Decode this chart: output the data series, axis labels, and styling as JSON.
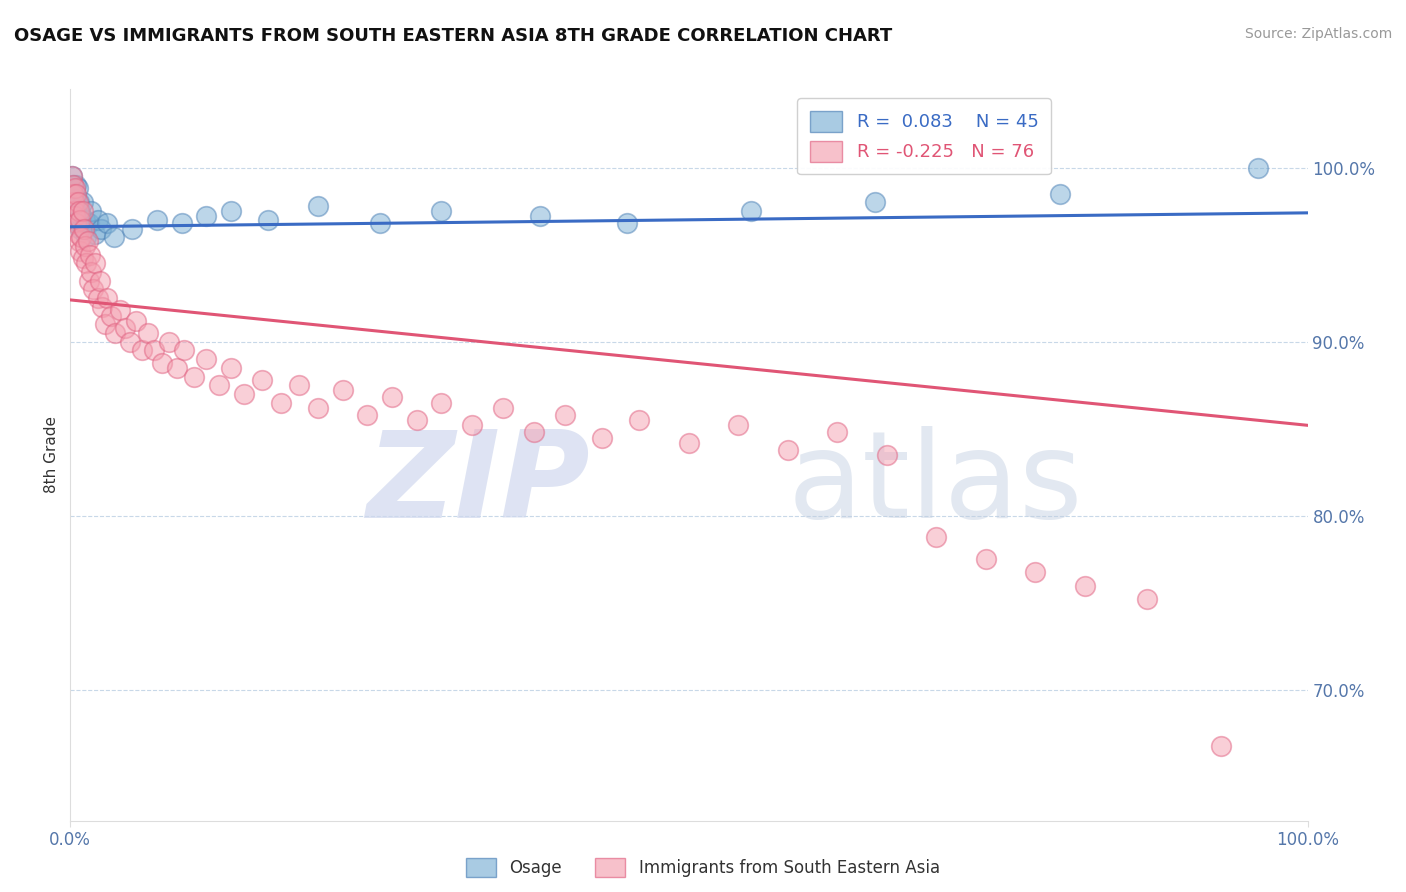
{
  "title": "OSAGE VS IMMIGRANTS FROM SOUTH EASTERN ASIA 8TH GRADE CORRELATION CHART",
  "source": "Source: ZipAtlas.com",
  "ylabel": "8th Grade",
  "ytick_labels": [
    "70.0%",
    "80.0%",
    "90.0%",
    "100.0%"
  ],
  "ytick_values": [
    0.7,
    0.8,
    0.9,
    1.0
  ],
  "xmin": 0.0,
  "xmax": 1.0,
  "ymin": 0.625,
  "ymax": 1.045,
  "blue_R": 0.083,
  "blue_N": 45,
  "pink_R": -0.225,
  "pink_N": 76,
  "blue_color": "#7BAFD4",
  "pink_color": "#F4A0B0",
  "blue_edge_color": "#4A7FB5",
  "pink_edge_color": "#E06080",
  "trend_color_blue": "#3A6BC4",
  "trend_color_pink": "#E05575",
  "grid_color": "#C8D8E8",
  "axis_label_color": "#5577AA",
  "title_color": "#111111",
  "legend_label_blue": "Osage",
  "legend_label_pink": "Immigrants from South Eastern Asia",
  "blue_trend_x0": 0.0,
  "blue_trend_x1": 1.0,
  "blue_trend_y0": 0.966,
  "blue_trend_y1": 0.974,
  "pink_trend_x0": 0.0,
  "pink_trend_x1": 1.0,
  "pink_trend_y0": 0.924,
  "pink_trend_y1": 0.852,
  "blue_scatter_x": [
    0.001,
    0.002,
    0.002,
    0.003,
    0.003,
    0.003,
    0.004,
    0.004,
    0.004,
    0.005,
    0.005,
    0.005,
    0.006,
    0.006,
    0.007,
    0.007,
    0.008,
    0.008,
    0.009,
    0.01,
    0.01,
    0.012,
    0.013,
    0.015,
    0.017,
    0.02,
    0.022,
    0.025,
    0.03,
    0.035,
    0.05,
    0.07,
    0.09,
    0.11,
    0.13,
    0.16,
    0.2,
    0.25,
    0.3,
    0.38,
    0.45,
    0.55,
    0.65,
    0.8,
    0.96
  ],
  "blue_scatter_y": [
    0.995,
    0.99,
    0.985,
    0.98,
    0.975,
    0.97,
    0.985,
    0.978,
    0.972,
    0.99,
    0.982,
    0.975,
    0.988,
    0.97,
    0.98,
    0.968,
    0.975,
    0.965,
    0.972,
    0.98,
    0.965,
    0.97,
    0.96,
    0.968,
    0.975,
    0.962,
    0.97,
    0.965,
    0.968,
    0.96,
    0.965,
    0.97,
    0.968,
    0.972,
    0.975,
    0.97,
    0.978,
    0.968,
    0.975,
    0.972,
    0.968,
    0.975,
    0.98,
    0.985,
    1.0
  ],
  "pink_scatter_x": [
    0.001,
    0.002,
    0.002,
    0.003,
    0.003,
    0.004,
    0.004,
    0.005,
    0.005,
    0.006,
    0.006,
    0.007,
    0.007,
    0.008,
    0.008,
    0.009,
    0.01,
    0.01,
    0.011,
    0.012,
    0.013,
    0.014,
    0.015,
    0.016,
    0.017,
    0.018,
    0.02,
    0.022,
    0.024,
    0.026,
    0.028,
    0.03,
    0.033,
    0.036,
    0.04,
    0.044,
    0.048,
    0.053,
    0.058,
    0.063,
    0.068,
    0.074,
    0.08,
    0.086,
    0.092,
    0.1,
    0.11,
    0.12,
    0.13,
    0.14,
    0.155,
    0.17,
    0.185,
    0.2,
    0.22,
    0.24,
    0.26,
    0.28,
    0.3,
    0.325,
    0.35,
    0.375,
    0.4,
    0.43,
    0.46,
    0.5,
    0.54,
    0.58,
    0.62,
    0.66,
    0.7,
    0.74,
    0.78,
    0.82,
    0.87,
    0.93
  ],
  "pink_scatter_y": [
    0.995,
    0.99,
    0.985,
    0.98,
    0.975,
    0.988,
    0.972,
    0.985,
    0.968,
    0.98,
    0.962,
    0.975,
    0.958,
    0.97,
    0.952,
    0.96,
    0.975,
    0.948,
    0.965,
    0.955,
    0.945,
    0.958,
    0.935,
    0.95,
    0.94,
    0.93,
    0.945,
    0.925,
    0.935,
    0.92,
    0.91,
    0.925,
    0.915,
    0.905,
    0.918,
    0.908,
    0.9,
    0.912,
    0.895,
    0.905,
    0.895,
    0.888,
    0.9,
    0.885,
    0.895,
    0.88,
    0.89,
    0.875,
    0.885,
    0.87,
    0.878,
    0.865,
    0.875,
    0.862,
    0.872,
    0.858,
    0.868,
    0.855,
    0.865,
    0.852,
    0.862,
    0.848,
    0.858,
    0.845,
    0.855,
    0.842,
    0.852,
    0.838,
    0.848,
    0.835,
    0.788,
    0.775,
    0.768,
    0.76,
    0.752,
    0.668
  ]
}
